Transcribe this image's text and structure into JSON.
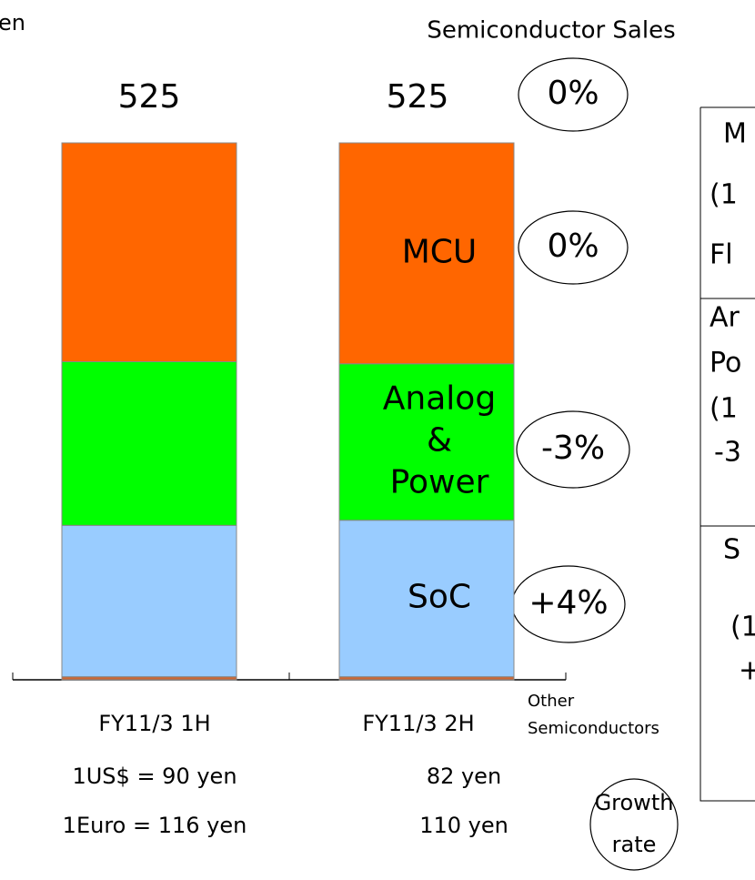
{
  "chart_data": {
    "type": "stacked_bar",
    "title": "Semiconductor Sales",
    "unit_label": "en",
    "categories": [
      "FY11/3 1H",
      "FY11/3 2H"
    ],
    "series": [
      {
        "name": "Other Semiconductors",
        "color": "#cc6633",
        "values": [
          3,
          3
        ]
      },
      {
        "name": "SoC",
        "color": "#99ccff",
        "values": [
          148,
          153
        ]
      },
      {
        "name": "Analog & Power",
        "color": "#00ff00",
        "values": [
          160,
          153
        ]
      },
      {
        "name": "MCU",
        "color": "#ff6600",
        "values": [
          214,
          216
        ]
      }
    ],
    "totals": [
      525,
      525
    ],
    "ylim": [
      0,
      525
    ],
    "exchange_rates": [
      [
        "1US$ = 90 yen",
        "82 yen"
      ],
      [
        "1Euro = 116 yen",
        "110 yen"
      ]
    ],
    "growth_rates": [
      "0%",
      "0%",
      "-3%",
      "+4%"
    ],
    "growth_rate_label": "Growth rate",
    "side_notes": [
      "M",
      "(1",
      "Fl",
      "Ar",
      "Po",
      "(1",
      "-3",
      "S",
      "(1",
      "+"
    ]
  }
}
